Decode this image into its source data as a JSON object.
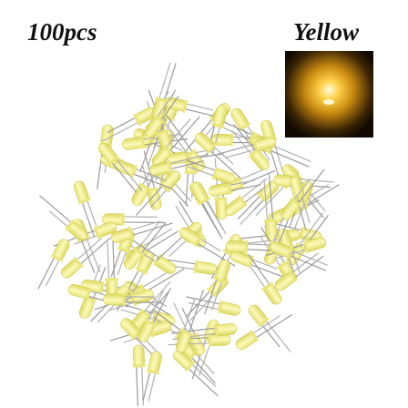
{
  "texts": {
    "quantity": "100pcs",
    "color_name": "Yellow"
  }
}
